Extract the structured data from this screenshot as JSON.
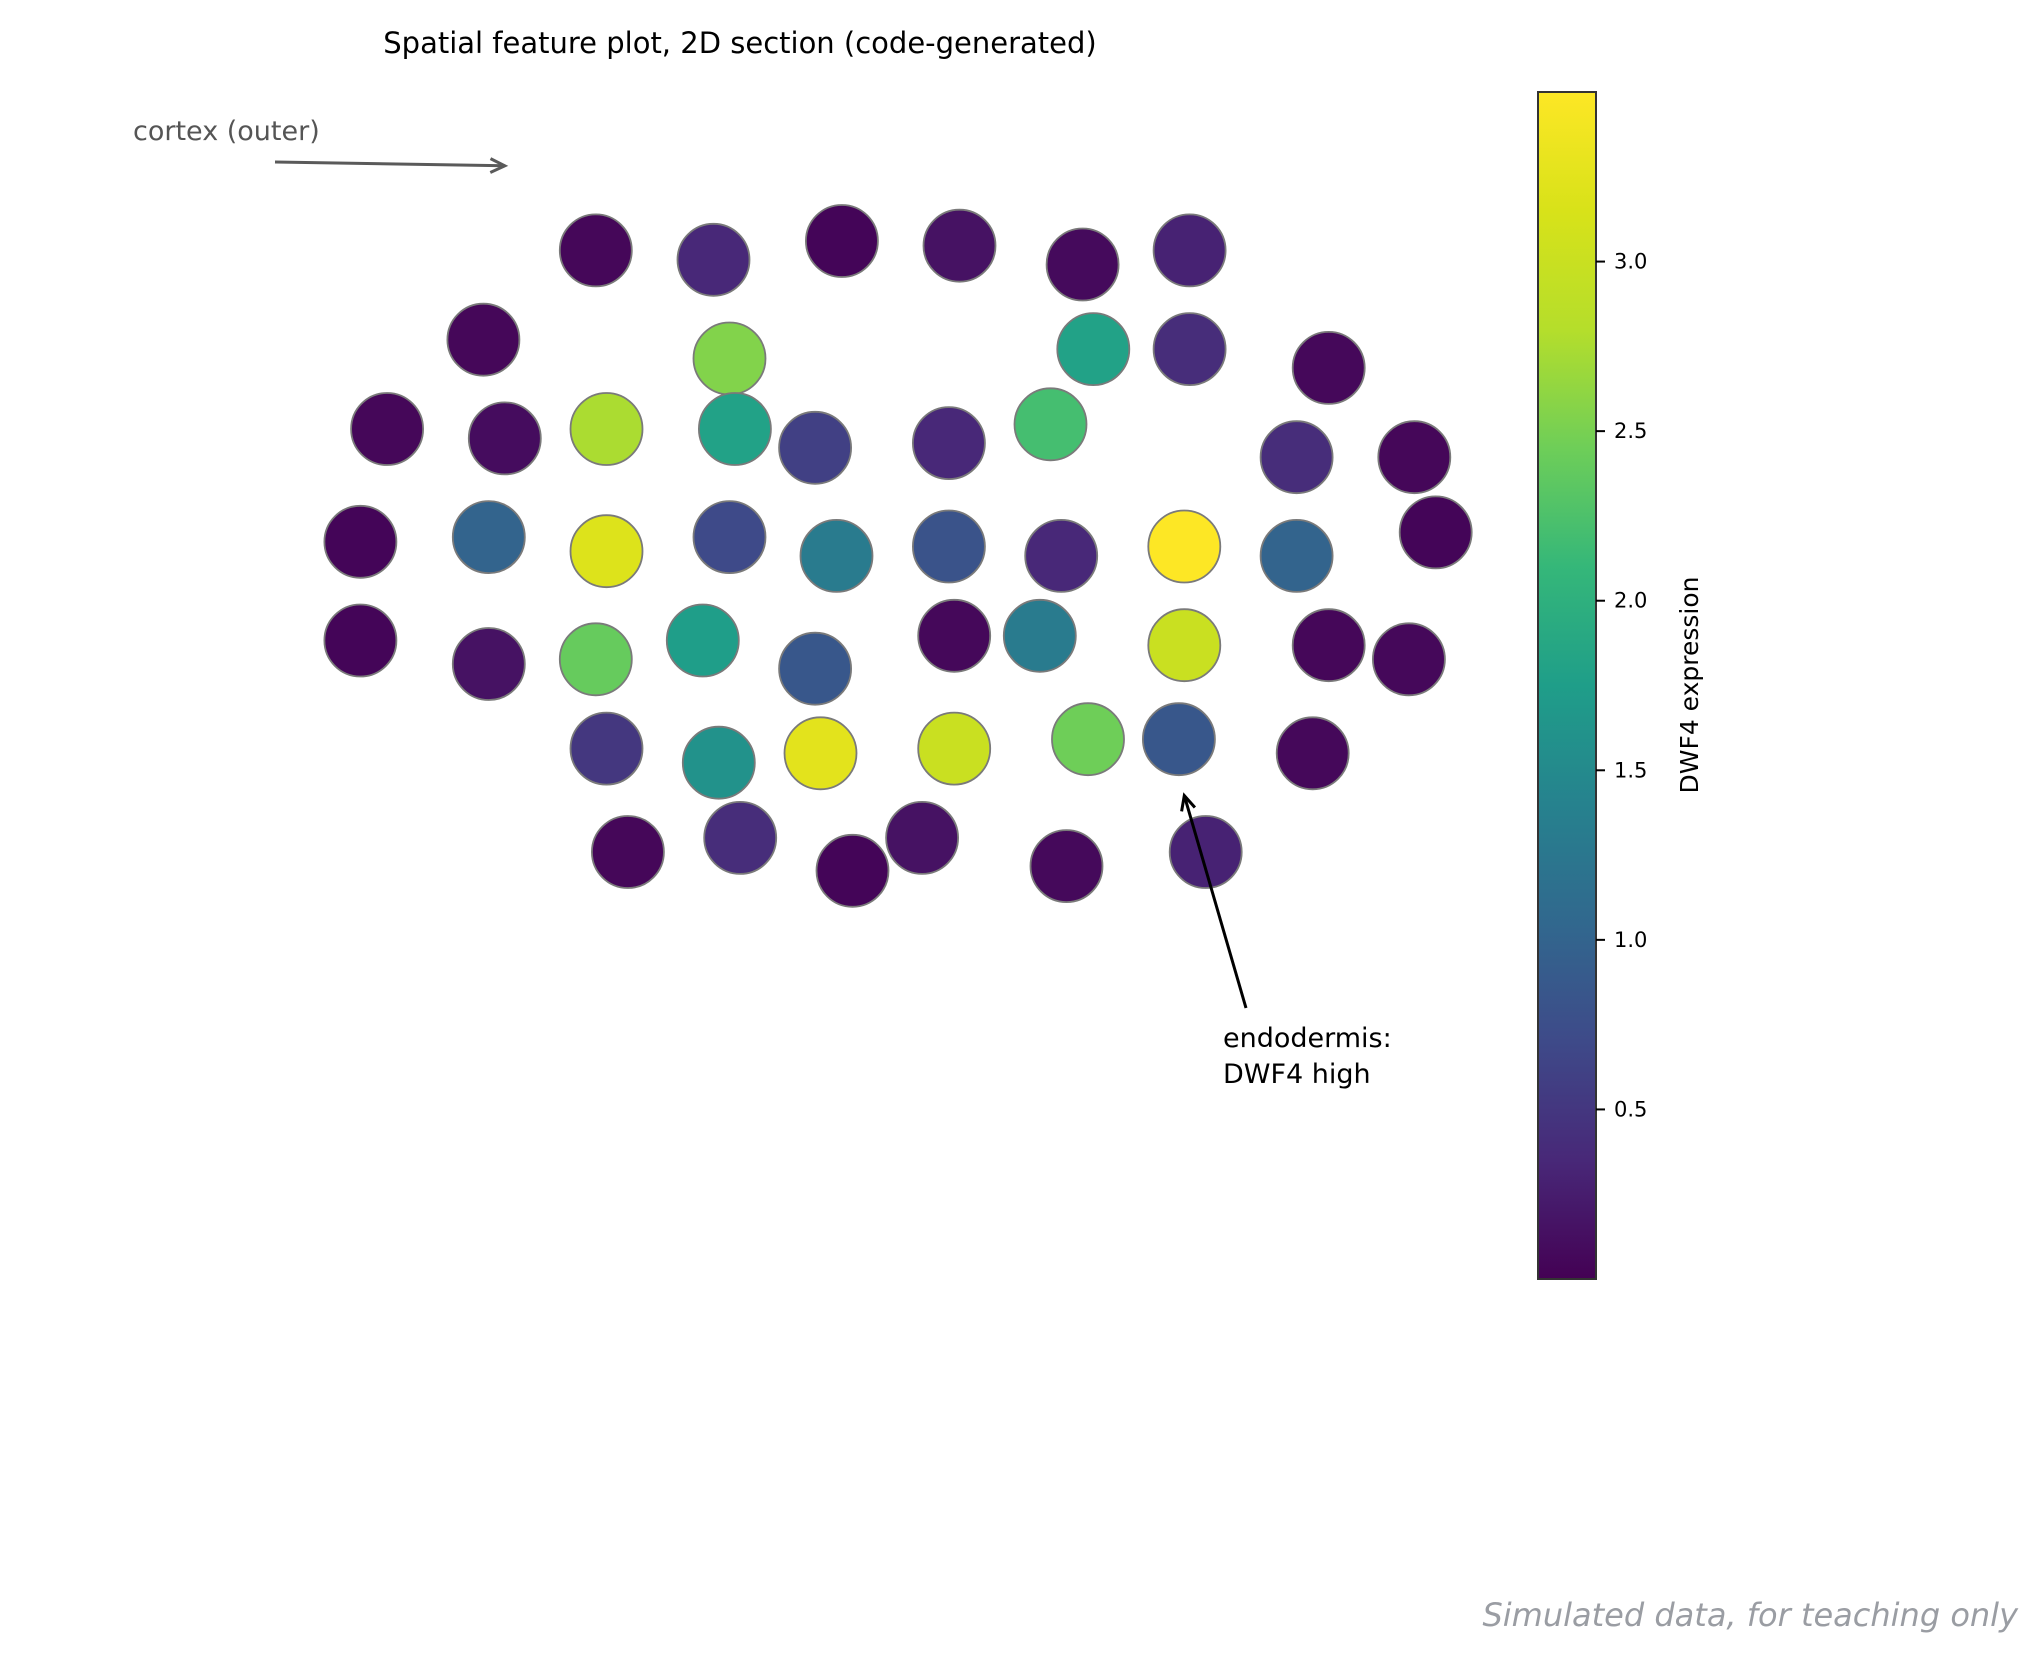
{
  "chart_data": {
    "type": "scatter",
    "title": "Spatial feature plot, 2D section (code-generated)",
    "colorbar": {
      "label": "DWF4 expression",
      "colormap": "viridis",
      "range": [
        0.0,
        3.5
      ],
      "ticks": [
        0.5,
        1.0,
        1.5,
        2.0,
        2.5,
        3.0
      ],
      "tick_labels": [
        "0.5",
        "1.0",
        "1.5",
        "2.0",
        "2.5",
        "3.0"
      ]
    },
    "axes_visible": false,
    "xlim": [
      -1.3,
      1.3
    ],
    "ylim": [
      -1.3,
      1.3
    ],
    "points": [
      {
        "x": -0.55,
        "y": 0.78,
        "value": 0.05
      },
      {
        "x": -0.33,
        "y": 0.76,
        "value": 0.35
      },
      {
        "x": -0.09,
        "y": 0.8,
        "value": 0.04
      },
      {
        "x": 0.13,
        "y": 0.79,
        "value": 0.15
      },
      {
        "x": 0.36,
        "y": 0.75,
        "value": 0.08
      },
      {
        "x": 0.56,
        "y": 0.78,
        "value": 0.3
      },
      {
        "x": -0.76,
        "y": 0.59,
        "value": 0.05
      },
      {
        "x": -0.3,
        "y": 0.55,
        "value": 2.55
      },
      {
        "x": 0.38,
        "y": 0.57,
        "value": 1.8
      },
      {
        "x": 0.56,
        "y": 0.57,
        "value": 0.4
      },
      {
        "x": 0.82,
        "y": 0.53,
        "value": 0.06
      },
      {
        "x": -0.94,
        "y": 0.4,
        "value": 0.05
      },
      {
        "x": -0.72,
        "y": 0.38,
        "value": 0.1
      },
      {
        "x": -0.53,
        "y": 0.4,
        "value": 2.75
      },
      {
        "x": -0.29,
        "y": 0.4,
        "value": 1.8
      },
      {
        "x": -0.14,
        "y": 0.36,
        "value": 0.6
      },
      {
        "x": 0.11,
        "y": 0.37,
        "value": 0.35
      },
      {
        "x": 0.3,
        "y": 0.41,
        "value": 2.2
      },
      {
        "x": 0.76,
        "y": 0.34,
        "value": 0.4
      },
      {
        "x": 0.98,
        "y": 0.34,
        "value": 0.05
      },
      {
        "x": -0.99,
        "y": 0.16,
        "value": 0.04
      },
      {
        "x": -0.75,
        "y": 0.17,
        "value": 1.0
      },
      {
        "x": -0.53,
        "y": 0.14,
        "value": 3.2
      },
      {
        "x": -0.3,
        "y": 0.17,
        "value": 0.7
      },
      {
        "x": -0.1,
        "y": 0.13,
        "value": 1.3
      },
      {
        "x": 0.11,
        "y": 0.15,
        "value": 0.8
      },
      {
        "x": 0.32,
        "y": 0.13,
        "value": 0.35
      },
      {
        "x": 0.55,
        "y": 0.15,
        "value": 3.5
      },
      {
        "x": 0.76,
        "y": 0.13,
        "value": 1.0
      },
      {
        "x": 1.02,
        "y": 0.18,
        "value": 0.04
      },
      {
        "x": -0.99,
        "y": -0.05,
        "value": 0.04
      },
      {
        "x": -0.75,
        "y": -0.1,
        "value": 0.15
      },
      {
        "x": -0.55,
        "y": -0.09,
        "value": 2.4
      },
      {
        "x": -0.35,
        "y": -0.05,
        "value": 1.75
      },
      {
        "x": -0.14,
        "y": -0.11,
        "value": 0.85
      },
      {
        "x": 0.12,
        "y": -0.04,
        "value": 0.06
      },
      {
        "x": 0.28,
        "y": -0.04,
        "value": 1.3
      },
      {
        "x": 0.55,
        "y": -0.06,
        "value": 3.0
      },
      {
        "x": 0.82,
        "y": -0.06,
        "value": 0.05
      },
      {
        "x": 0.97,
        "y": -0.09,
        "value": 0.06
      },
      {
        "x": -0.53,
        "y": -0.28,
        "value": 0.5
      },
      {
        "x": -0.32,
        "y": -0.31,
        "value": 1.6
      },
      {
        "x": -0.13,
        "y": -0.29,
        "value": 3.25
      },
      {
        "x": 0.12,
        "y": -0.28,
        "value": 3.0
      },
      {
        "x": 0.37,
        "y": -0.26,
        "value": 2.45
      },
      {
        "x": 0.54,
        "y": -0.26,
        "value": 0.85
      },
      {
        "x": 0.79,
        "y": -0.29,
        "value": 0.06
      },
      {
        "x": -0.49,
        "y": -0.5,
        "value": 0.05
      },
      {
        "x": -0.28,
        "y": -0.47,
        "value": 0.4
      },
      {
        "x": -0.07,
        "y": -0.54,
        "value": 0.04
      },
      {
        "x": 0.06,
        "y": -0.47,
        "value": 0.15
      },
      {
        "x": 0.33,
        "y": -0.53,
        "value": 0.07
      },
      {
        "x": 0.59,
        "y": -0.5,
        "value": 0.3
      }
    ],
    "annotations": [
      {
        "text": "cortex (outer)",
        "arrow_to": {
          "x": -0.72,
          "y": 0.96
        }
      },
      {
        "text_lines": [
          "endodermis:",
          "DWF4 high"
        ],
        "arrow_to": {
          "x": 0.55,
          "y": -0.38
        }
      }
    ]
  },
  "footer_note": "Simulated data, for teaching only"
}
